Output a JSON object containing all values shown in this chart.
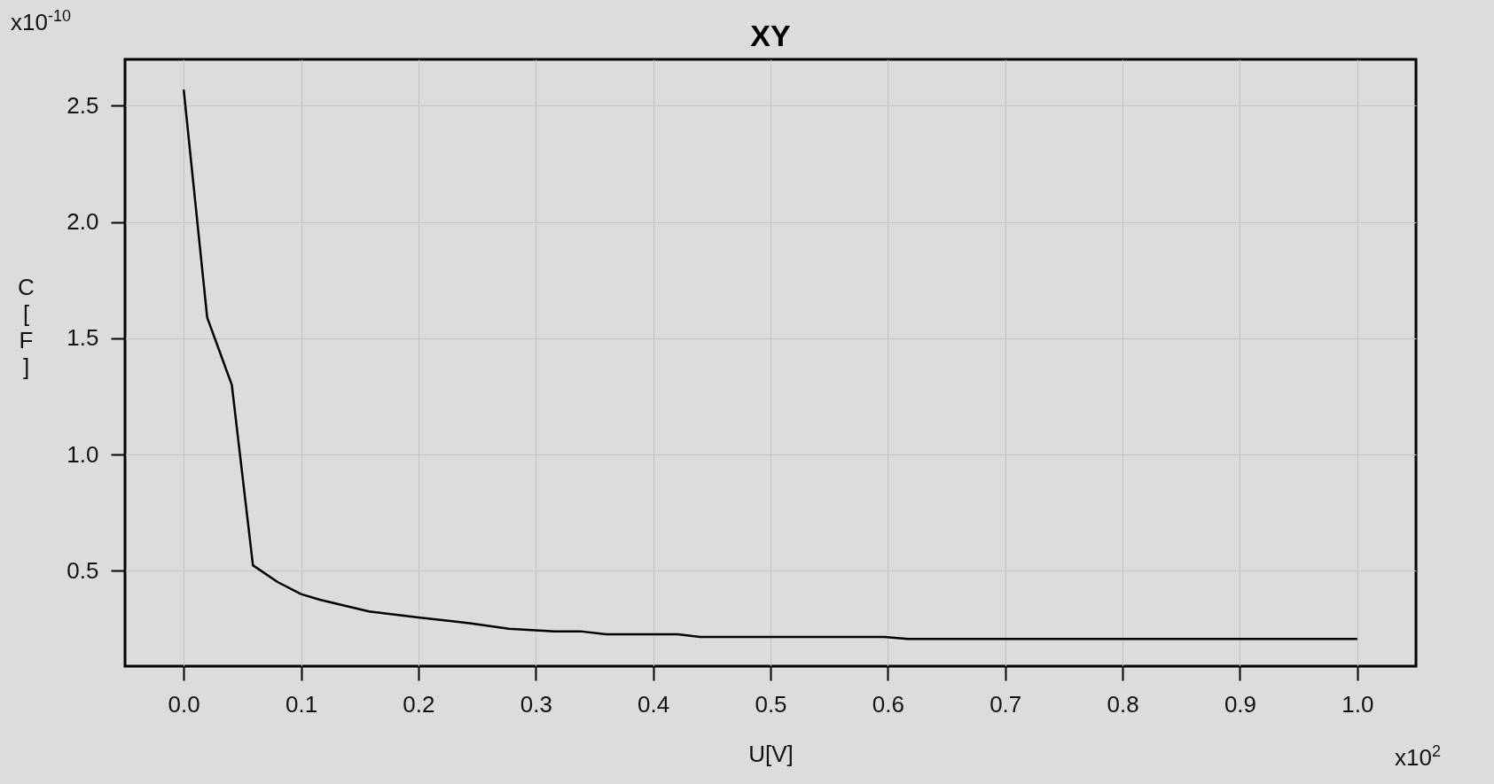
{
  "chart_data": {
    "type": "line",
    "title": "XY",
    "xlabel": "U[V]",
    "ylabel": "C [F]",
    "x": [
      0,
      0.02,
      0.041,
      0.059,
      0.08,
      0.1,
      0.116,
      0.158,
      0.2,
      0.245,
      0.277,
      0.316,
      0.338,
      0.36,
      0.421,
      0.44,
      0.597,
      0.617,
      1.0
    ],
    "series": [
      {
        "color": "#000000",
        "values": [
          2.57,
          1.59,
          1.3,
          0.524,
          0.452,
          0.4,
          0.376,
          0.325,
          0.3,
          0.274,
          0.251,
          0.24,
          0.24,
          0.227,
          0.227,
          0.216,
          0.216,
          0.207,
          0.207
        ]
      }
    ],
    "xlim": [
      -0.05,
      1.05
    ],
    "ylim": [
      0.09,
      2.7
    ],
    "xticks": [
      {
        "value": 0,
        "label": "0.0"
      },
      0.1,
      0.2,
      0.3,
      0.4,
      0.5,
      0.6,
      0.7,
      0.8,
      0.9,
      {
        "value": 1,
        "label": "1.0"
      }
    ],
    "yticks": [
      0.5,
      {
        "value": 1,
        "label": "1.0"
      },
      1.5,
      {
        "value": 2,
        "label": "2.0"
      },
      2.5
    ],
    "grid": true,
    "annotations": [
      "x10$^{-10}$",
      "x10$^{2}$"
    ]
  }
}
